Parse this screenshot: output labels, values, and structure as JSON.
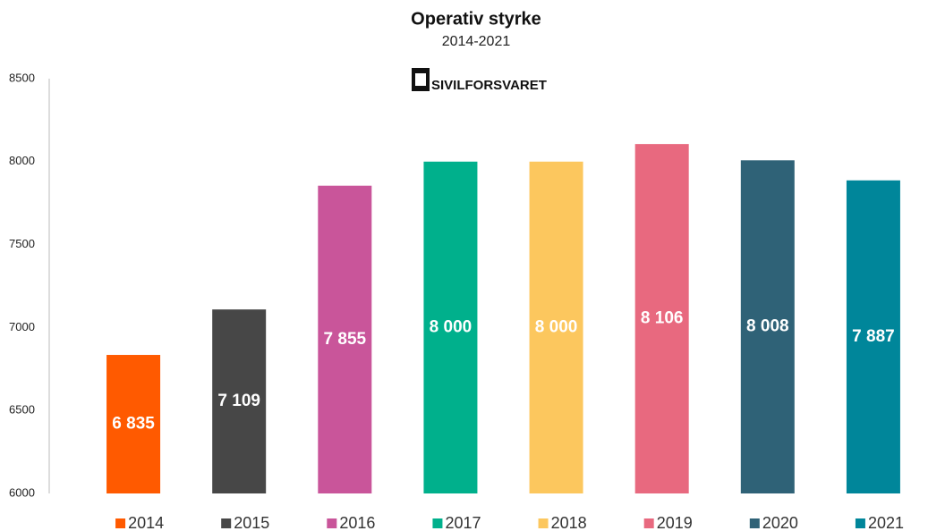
{
  "chart_data": {
    "type": "bar",
    "title": "Operativ styrke",
    "subtitle": "2014-2021",
    "logo_text": "SIVILFORSVARET",
    "categories": [
      "2014",
      "2015",
      "2016",
      "2017",
      "2018",
      "2019",
      "2020",
      "2021"
    ],
    "values": [
      6835,
      7109,
      7855,
      8000,
      8000,
      8106,
      8008,
      7887
    ],
    "value_labels": [
      "6 835",
      "7 109",
      "7 855",
      "8 000",
      "8 000",
      "8 106",
      "8 008",
      "7 887"
    ],
    "colors": [
      "#ff5a00",
      "#474747",
      "#c9559a",
      "#00b08c",
      "#fcc75e",
      "#e8697f",
      "#2f6277",
      "#00869a"
    ],
    "ylim": [
      6000,
      8500
    ],
    "yticks": [
      6000,
      6500,
      7000,
      7500,
      8000,
      8500
    ],
    "grid": false,
    "legend": "bottom"
  }
}
